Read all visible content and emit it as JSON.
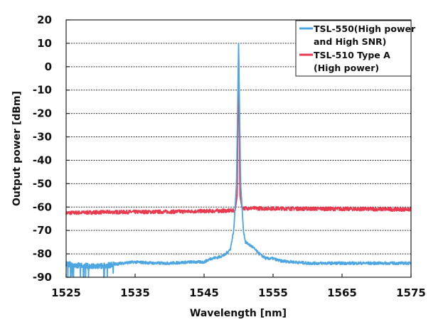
{
  "chart_data": {
    "type": "line",
    "title": "",
    "xlabel": "Wavelength [nm]",
    "ylabel": "Output power [dBm]",
    "xlim": [
      1525,
      1575
    ],
    "ylim": [
      -90,
      20
    ],
    "xticks": [
      1525,
      1535,
      1545,
      1555,
      1565,
      1575
    ],
    "yticks": [
      20,
      10,
      0,
      -10,
      -20,
      -30,
      -40,
      -50,
      -60,
      -70,
      -80,
      -90
    ],
    "grid": "horizontal dotted",
    "legend_position": "top-right",
    "series": [
      {
        "name": "TSL-550(High power and High SNR)",
        "legend_lines": [
          "TSL-550(High power",
          "and High SNR)"
        ],
        "color": "#4da6e0",
        "x": [
          1525,
          1527,
          1529,
          1531,
          1533,
          1535,
          1538,
          1540,
          1543,
          1545,
          1546,
          1547,
          1548,
          1548.8,
          1549.3,
          1549.7,
          1550,
          1550.3,
          1550.7,
          1551,
          1552,
          1553,
          1554,
          1555,
          1556,
          1560,
          1565,
          1570,
          1575
        ],
        "y": [
          -84.5,
          -85,
          -85.5,
          -85,
          -84,
          -83.5,
          -84,
          -84,
          -83.5,
          -83.5,
          -82,
          -81.5,
          -80.5,
          -78,
          -70,
          -50,
          10,
          -50,
          -70,
          -75,
          -77,
          -80,
          -82,
          -82,
          -83,
          -84,
          -84,
          -84,
          -84
        ]
      },
      {
        "name": "TSL-510 Type A (High power)",
        "legend_lines": [
          "TSL-510 Type A",
          "(High power)"
        ],
        "color": "#e8394f",
        "x": [
          1525,
          1530,
          1540,
          1549.5,
          1549.8,
          1550,
          1550.2,
          1550.5,
          1560,
          1575
        ],
        "y": [
          -62.5,
          -62.2,
          -62,
          -61.5,
          -55,
          8,
          -55,
          -60.5,
          -60.7,
          -61
        ]
      }
    ]
  }
}
